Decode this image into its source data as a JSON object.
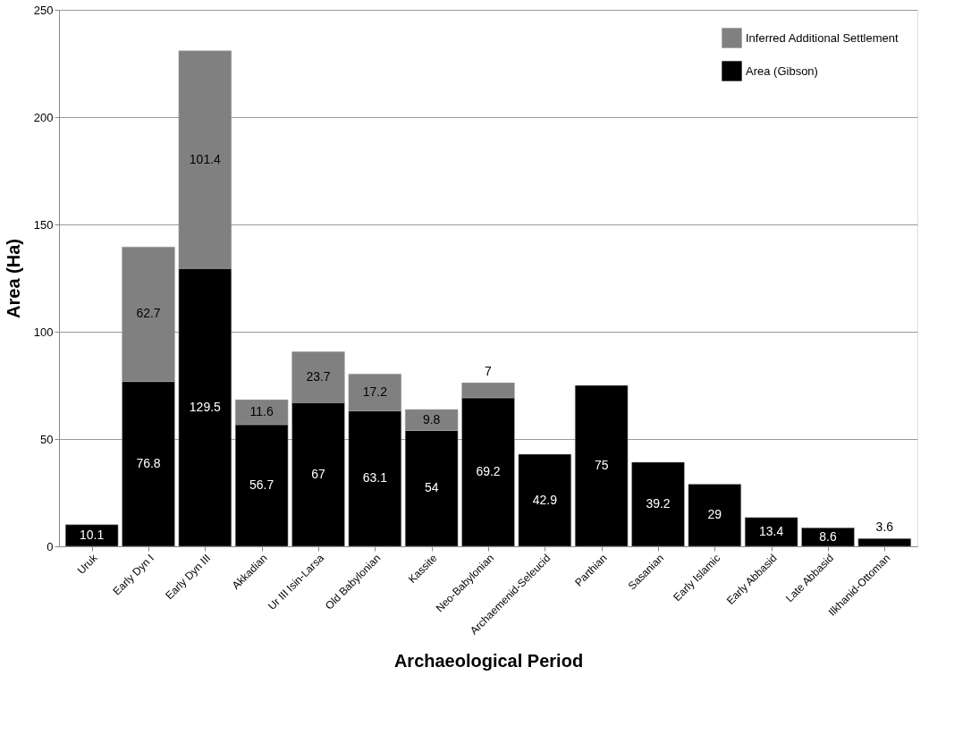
{
  "chart_data": {
    "type": "bar",
    "stacked": true,
    "xlabel": "Archaeological Period",
    "ylabel": "Area (Ha)",
    "categories": [
      "Uruk",
      "Early Dyn I",
      "Early Dyn III",
      "Akkadian",
      "Ur III Isin-Larsa",
      "Old Babylonian",
      "Kassite",
      "Neo-Babylonian",
      "Archaemenid-Seleucid",
      "Parthian",
      "Sasanian",
      "Early Islamic",
      "Early Abbasid",
      "Late Abbasid",
      "Ilkhanid-Ottoman"
    ],
    "series": [
      {
        "name": "Area (Gibson)",
        "color": "#000000",
        "values": [
          10.1,
          76.8,
          129.5,
          56.7,
          67,
          63.1,
          54,
          69.2,
          42.9,
          75,
          39.2,
          29,
          13.4,
          8.6,
          3.6
        ]
      },
      {
        "name": "Inferred Additional Settlement",
        "color": "#808080",
        "values": [
          null,
          62.7,
          101.4,
          11.6,
          23.7,
          17.2,
          9.8,
          7,
          null,
          null,
          null,
          null,
          null,
          null,
          null
        ]
      }
    ],
    "ylim": [
      0,
      250
    ],
    "yticks": [
      0,
      50,
      100,
      150,
      200,
      250
    ],
    "grid": "y",
    "legend": "top right",
    "data_labels": true
  }
}
